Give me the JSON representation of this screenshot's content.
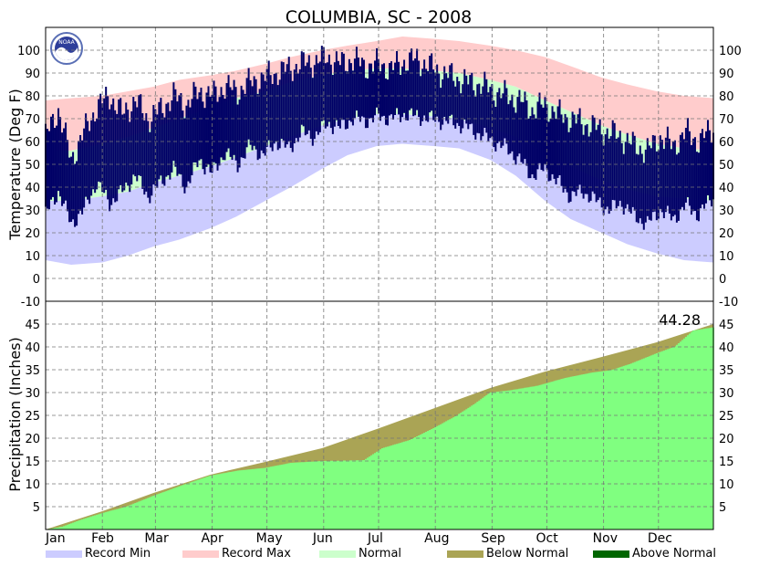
{
  "chart_data": {
    "type": "area",
    "title": "COLUMBIA, SC - 2008",
    "logo_text": "NOAA",
    "months": [
      "Jan",
      "Feb",
      "Mar",
      "Apr",
      "May",
      "Jun",
      "Jul",
      "Aug",
      "Sep",
      "Oct",
      "Nov",
      "Dec"
    ],
    "temperature": {
      "ylabel": "Temperature (Deg F)",
      "ylim": [
        -10,
        110
      ],
      "ticks": [
        -10,
        0,
        10,
        20,
        30,
        40,
        50,
        60,
        70,
        80,
        90,
        100
      ],
      "record_max": [
        [
          1,
          78
        ],
        [
          15,
          79
        ],
        [
          32,
          80
        ],
        [
          46,
          82
        ],
        [
          60,
          84
        ],
        [
          74,
          87
        ],
        [
          91,
          89
        ],
        [
          105,
          91
        ],
        [
          121,
          94
        ],
        [
          135,
          97
        ],
        [
          152,
          100
        ],
        [
          166,
          102
        ],
        [
          182,
          104
        ],
        [
          196,
          106
        ],
        [
          213,
          105
        ],
        [
          227,
          104
        ],
        [
          244,
          102
        ],
        [
          258,
          100
        ],
        [
          274,
          97
        ],
        [
          288,
          93
        ],
        [
          305,
          88
        ],
        [
          319,
          85
        ],
        [
          335,
          82
        ],
        [
          350,
          80
        ],
        [
          366,
          79
        ]
      ],
      "normal_high": [
        [
          1,
          56
        ],
        [
          15,
          56
        ],
        [
          32,
          59
        ],
        [
          46,
          62
        ],
        [
          60,
          66
        ],
        [
          74,
          70
        ],
        [
          91,
          75
        ],
        [
          105,
          79
        ],
        [
          121,
          82
        ],
        [
          135,
          86
        ],
        [
          152,
          89
        ],
        [
          166,
          91
        ],
        [
          182,
          92
        ],
        [
          196,
          92
        ],
        [
          213,
          91
        ],
        [
          227,
          90
        ],
        [
          244,
          87
        ],
        [
          258,
          84
        ],
        [
          274,
          78
        ],
        [
          288,
          73
        ],
        [
          305,
          67
        ],
        [
          319,
          63
        ],
        [
          335,
          59
        ],
        [
          350,
          57
        ],
        [
          366,
          56
        ]
      ],
      "normal_low": [
        [
          1,
          34
        ],
        [
          15,
          34
        ],
        [
          32,
          36
        ],
        [
          46,
          38
        ],
        [
          60,
          42
        ],
        [
          74,
          45
        ],
        [
          91,
          49
        ],
        [
          105,
          53
        ],
        [
          121,
          58
        ],
        [
          135,
          62
        ],
        [
          152,
          67
        ],
        [
          166,
          70
        ],
        [
          182,
          72
        ],
        [
          196,
          72
        ],
        [
          213,
          71
        ],
        [
          227,
          70
        ],
        [
          244,
          66
        ],
        [
          258,
          62
        ],
        [
          274,
          55
        ],
        [
          288,
          49
        ],
        [
          305,
          43
        ],
        [
          319,
          39
        ],
        [
          335,
          36
        ],
        [
          350,
          35
        ],
        [
          366,
          34
        ]
      ],
      "record_min": [
        [
          1,
          8
        ],
        [
          15,
          6
        ],
        [
          32,
          7
        ],
        [
          46,
          10
        ],
        [
          60,
          14
        ],
        [
          74,
          17
        ],
        [
          91,
          22
        ],
        [
          105,
          27
        ],
        [
          121,
          34
        ],
        [
          135,
          40
        ],
        [
          152,
          48
        ],
        [
          166,
          54
        ],
        [
          182,
          58
        ],
        [
          196,
          59
        ],
        [
          213,
          58
        ],
        [
          227,
          57
        ],
        [
          244,
          52
        ],
        [
          258,
          45
        ],
        [
          274,
          34
        ],
        [
          288,
          26
        ],
        [
          305,
          20
        ],
        [
          319,
          15
        ],
        [
          335,
          11
        ],
        [
          350,
          8
        ],
        [
          366,
          7
        ]
      ],
      "observed_2008": [
        [
          1,
          28,
          62
        ],
        [
          8,
          38,
          74
        ],
        [
          15,
          24,
          52
        ],
        [
          22,
          30,
          64
        ],
        [
          29,
          42,
          75
        ],
        [
          36,
          33,
          80
        ],
        [
          43,
          38,
          72
        ],
        [
          50,
          45,
          78
        ],
        [
          57,
          36,
          70
        ],
        [
          64,
          42,
          74
        ],
        [
          71,
          48,
          80
        ],
        [
          78,
          40,
          76
        ],
        [
          85,
          52,
          82
        ],
        [
          92,
          46,
          80
        ],
        [
          99,
          55,
          84
        ],
        [
          106,
          50,
          82
        ],
        [
          113,
          58,
          86
        ],
        [
          120,
          54,
          88
        ],
        [
          127,
          60,
          90
        ],
        [
          134,
          57,
          92
        ],
        [
          141,
          64,
          94
        ],
        [
          148,
          62,
          95
        ],
        [
          155,
          68,
          97
        ],
        [
          162,
          66,
          94
        ],
        [
          169,
          70,
          96
        ],
        [
          176,
          69,
          93
        ],
        [
          183,
          71,
          94
        ],
        [
          190,
          70,
          92
        ],
        [
          197,
          72,
          95
        ],
        [
          204,
          71,
          96
        ],
        [
          211,
          70,
          93
        ],
        [
          218,
          69,
          90
        ],
        [
          225,
          68,
          88
        ],
        [
          232,
          66,
          86
        ],
        [
          239,
          63,
          85
        ],
        [
          246,
          60,
          82
        ],
        [
          253,
          57,
          80
        ],
        [
          260,
          52,
          78
        ],
        [
          267,
          45,
          74
        ],
        [
          274,
          48,
          76
        ],
        [
          281,
          42,
          72
        ],
        [
          288,
          36,
          70
        ],
        [
          295,
          38,
          68
        ],
        [
          302,
          34,
          66
        ],
        [
          309,
          30,
          64
        ],
        [
          316,
          33,
          62
        ],
        [
          323,
          27,
          58
        ],
        [
          330,
          24,
          56
        ],
        [
          337,
          30,
          62
        ],
        [
          344,
          26,
          58
        ],
        [
          351,
          32,
          64
        ],
        [
          358,
          28,
          60
        ],
        [
          366,
          36,
          66
        ]
      ]
    },
    "precipitation": {
      "ylabel": "Precipitation (Inches)",
      "ylim": [
        0,
        50
      ],
      "ticks": [
        5,
        10,
        15,
        20,
        25,
        30,
        35,
        40,
        45
      ],
      "total_label": "44.28",
      "normal": [
        [
          1,
          0
        ],
        [
          32,
          4.0
        ],
        [
          60,
          8.0
        ],
        [
          91,
          12.0
        ],
        [
          121,
          14.8
        ],
        [
          152,
          17.8
        ],
        [
          182,
          22.0
        ],
        [
          213,
          26.5
        ],
        [
          244,
          31.0
        ],
        [
          274,
          34.6
        ],
        [
          305,
          37.8
        ],
        [
          335,
          41.0
        ],
        [
          366,
          45.0
        ]
      ],
      "observed_2008": [
        [
          1,
          0
        ],
        [
          10,
          0.6
        ],
        [
          20,
          2.1
        ],
        [
          32,
          3.6
        ],
        [
          45,
          5.0
        ],
        [
          60,
          7.4
        ],
        [
          75,
          9.6
        ],
        [
          91,
          11.8
        ],
        [
          106,
          12.9
        ],
        [
          121,
          13.5
        ],
        [
          135,
          14.6
        ],
        [
          152,
          15.0
        ],
        [
          165,
          15.1
        ],
        [
          175,
          15.2
        ],
        [
          185,
          17.8
        ],
        [
          200,
          19.6
        ],
        [
          213,
          22.2
        ],
        [
          225,
          24.8
        ],
        [
          235,
          27.4
        ],
        [
          244,
          30.0
        ],
        [
          255,
          30.5
        ],
        [
          270,
          31.5
        ],
        [
          285,
          33.2
        ],
        [
          300,
          34.4
        ],
        [
          310,
          34.9
        ],
        [
          320,
          36.2
        ],
        [
          335,
          38.6
        ],
        [
          345,
          40.1
        ],
        [
          355,
          43.6
        ],
        [
          366,
          44.28
        ]
      ]
    },
    "legend": [
      {
        "label": "Record Min",
        "color": "#ccccff"
      },
      {
        "label": "Record Max",
        "color": "#ffcccc"
      },
      {
        "label": "Normal",
        "color": "#ccffcc"
      },
      {
        "label": "Below Normal",
        "color": "#aaa455"
      },
      {
        "label": "Above Normal",
        "color": "#006600"
      }
    ],
    "colors": {
      "observed_temp": "#000066",
      "observed_precip": "#80ff80"
    }
  }
}
